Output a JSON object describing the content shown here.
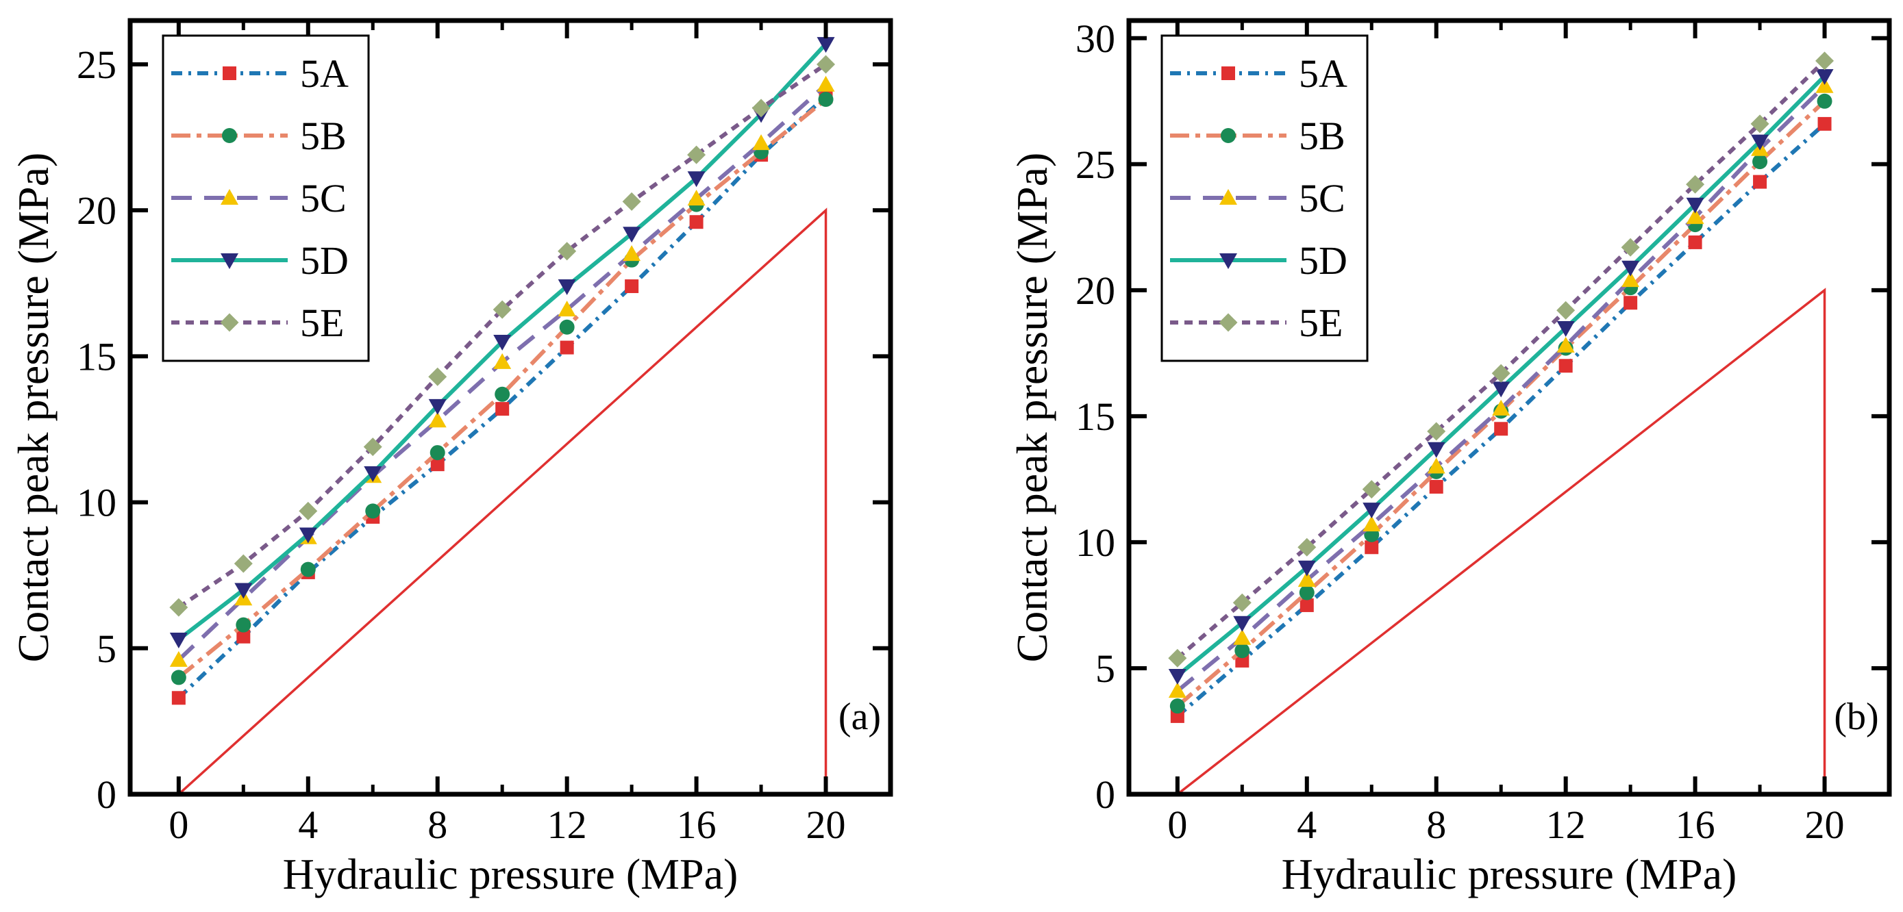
{
  "colors": {
    "5A": "#1f77b4",
    "5A_marker": "#e03030",
    "5B": "#e8876a",
    "5B_marker": "#1a8a55",
    "5C": "#7e6fae",
    "5C_marker": "#f5c400",
    "5D": "#1fb39a",
    "5D_marker": "#2a2a7a",
    "5E": "#7a5a8a",
    "5E_marker": "#9aac7a",
    "reference": "#e03030",
    "hatch": "#b8b8b8"
  },
  "chart_data": [
    {
      "type": "line",
      "panel_label": "(a)",
      "xlabel": "Hydraulic pressure (MPa)",
      "ylabel": "Contact peak pressure (MPa)",
      "xlim": [
        -1.5,
        22
      ],
      "ylim": [
        0,
        26.5
      ],
      "xticks": [
        0,
        4,
        8,
        12,
        16,
        20
      ],
      "xtick_labels": [
        "0",
        "4",
        "8",
        "12",
        "16",
        "20"
      ],
      "yticks": [
        0,
        5,
        10,
        15,
        20,
        25
      ],
      "ytick_labels": [
        "0",
        "5",
        "10",
        "15",
        "20",
        "25"
      ],
      "x": [
        0,
        2,
        4,
        6,
        8,
        10,
        12,
        14,
        16,
        18,
        20
      ],
      "series": [
        {
          "name": "5A",
          "values": [
            3.3,
            5.4,
            7.6,
            9.5,
            11.3,
            13.2,
            15.3,
            17.4,
            19.6,
            21.9,
            23.9
          ]
        },
        {
          "name": "5B",
          "values": [
            4.0,
            5.8,
            7.7,
            9.7,
            11.7,
            13.7,
            16.0,
            18.3,
            20.2,
            22.0,
            23.8
          ]
        },
        {
          "name": "5C",
          "values": [
            4.6,
            6.7,
            8.8,
            10.9,
            12.8,
            14.8,
            16.6,
            18.5,
            20.4,
            22.3,
            24.3
          ]
        },
        {
          "name": "5D",
          "values": [
            5.3,
            7.0,
            8.9,
            11.0,
            13.3,
            15.5,
            17.4,
            19.2,
            21.1,
            23.3,
            25.7
          ]
        },
        {
          "name": "5E",
          "values": [
            6.4,
            7.9,
            9.7,
            11.9,
            14.3,
            16.6,
            18.6,
            20.3,
            21.9,
            23.5,
            25.0
          ]
        }
      ],
      "reference_triangle": {
        "x": [
          0,
          20,
          20
        ],
        "y": [
          0,
          20,
          0
        ]
      },
      "legend": "top-left"
    },
    {
      "type": "line",
      "panel_label": "(b)",
      "xlabel": "Hydraulic pressure (MPa)",
      "ylabel": "Contact peak pressure (MPa)",
      "xlim": [
        -1.5,
        22
      ],
      "ylim": [
        0,
        30.7
      ],
      "xticks": [
        0,
        4,
        8,
        12,
        16,
        20
      ],
      "xtick_labels": [
        "0",
        "4",
        "8",
        "12",
        "16",
        "20"
      ],
      "yticks": [
        0,
        5,
        10,
        15,
        20,
        25,
        30
      ],
      "ytick_labels": [
        "0",
        "5",
        "10",
        "15",
        "20",
        "25",
        "30"
      ],
      "x": [
        0,
        2,
        4,
        6,
        8,
        10,
        12,
        14,
        16,
        18,
        20
      ],
      "series": [
        {
          "name": "5A",
          "values": [
            3.1,
            5.3,
            7.5,
            9.8,
            12.2,
            14.5,
            17.0,
            19.5,
            21.9,
            24.3,
            26.6
          ]
        },
        {
          "name": "5B",
          "values": [
            3.5,
            5.7,
            8.0,
            10.3,
            12.8,
            15.2,
            17.7,
            20.1,
            22.6,
            25.1,
            27.5
          ]
        },
        {
          "name": "5C",
          "values": [
            4.1,
            6.2,
            8.5,
            10.7,
            13.0,
            15.3,
            17.8,
            20.4,
            22.9,
            25.6,
            28.1
          ]
        },
        {
          "name": "5D",
          "values": [
            4.7,
            6.8,
            9.0,
            11.3,
            13.7,
            16.1,
            18.5,
            20.9,
            23.4,
            25.9,
            28.5
          ]
        },
        {
          "name": "5E",
          "values": [
            5.4,
            7.6,
            9.8,
            12.1,
            14.4,
            16.7,
            19.2,
            21.7,
            24.2,
            26.6,
            29.1
          ]
        }
      ],
      "reference_triangle": {
        "x": [
          0,
          20,
          20
        ],
        "y": [
          0,
          20,
          0
        ]
      },
      "legend": "top-left"
    }
  ]
}
